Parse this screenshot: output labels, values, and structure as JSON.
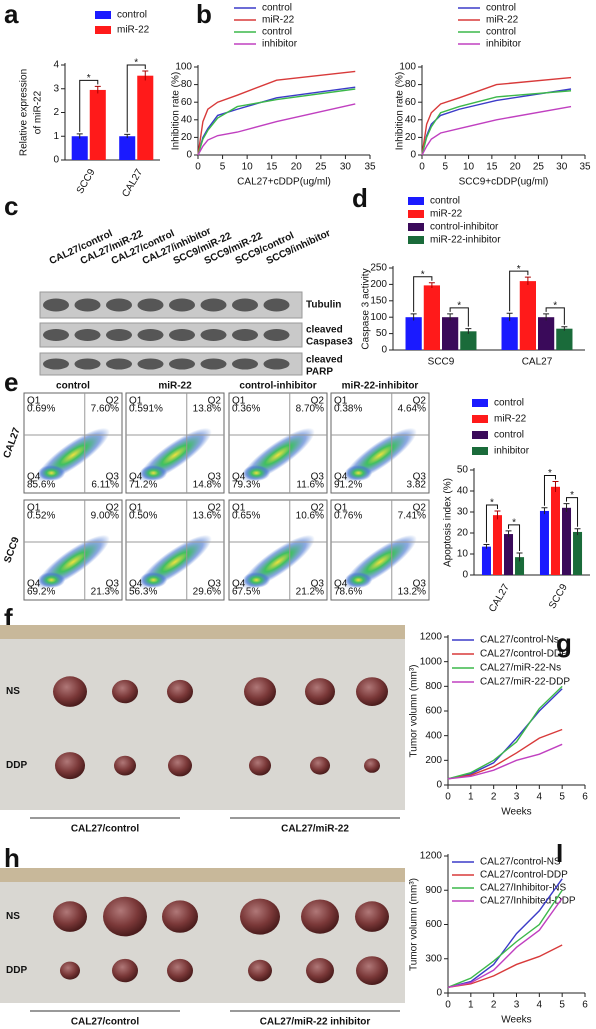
{
  "panels": [
    "a",
    "b",
    "c",
    "d",
    "e",
    "f",
    "g",
    "h",
    "I"
  ],
  "chart_data": [
    {
      "type": "bar",
      "ylabel": [
        "Relative expression",
        "of miR-22"
      ],
      "categories": [
        "SCC9",
        "CAL27"
      ],
      "series": [
        {
          "name": "control",
          "color": "#1a1aff",
          "values": [
            1.0,
            1.0
          ],
          "errors": [
            0.1,
            0.08
          ]
        },
        {
          "name": "miR-22",
          "color": "#ff1a1a",
          "values": [
            2.95,
            3.55
          ],
          "errors": [
            0.15,
            0.2
          ]
        }
      ],
      "annotations": [
        "*",
        "*"
      ],
      "ylim": [
        0,
        4
      ],
      "yticks": [
        0,
        1,
        2,
        3,
        4
      ]
    },
    {
      "type": "line",
      "xlabel": "CAL27+cDDP(ug/ml)",
      "ylabel": [
        "Inhibition rate (%)"
      ],
      "x": [
        0,
        1,
        2,
        4,
        8,
        16,
        32
      ],
      "series": [
        {
          "name": "control",
          "color": "#3b3bc8",
          "values": [
            0,
            20,
            30,
            45,
            52,
            65,
            77
          ]
        },
        {
          "name": "miR-22",
          "color": "#d83a3a",
          "values": [
            0,
            38,
            52,
            60,
            68,
            85,
            95
          ]
        },
        {
          "name": "control",
          "color": "#3cb84a",
          "values": [
            0,
            18,
            28,
            42,
            55,
            63,
            75
          ]
        },
        {
          "name": "inhibitor",
          "color": "#c040c0",
          "values": [
            0,
            10,
            17,
            22,
            26,
            38,
            58
          ]
        }
      ],
      "xlim": [
        0,
        35
      ],
      "xticks": [
        0,
        5,
        10,
        15,
        20,
        25,
        30,
        35
      ],
      "ylim": [
        0,
        100
      ],
      "yticks": [
        0,
        20,
        40,
        60,
        80,
        100
      ]
    },
    {
      "type": "line",
      "xlabel": "SCC9+cDDP(ug/ml)",
      "ylabel": [
        "Inhibition rate (%)"
      ],
      "x": [
        0,
        1,
        2,
        4,
        8,
        16,
        32
      ],
      "series": [
        {
          "name": "control",
          "color": "#3b3bc8",
          "values": [
            0,
            22,
            35,
            45,
            52,
            62,
            75
          ]
        },
        {
          "name": "miR-22",
          "color": "#d83a3a",
          "values": [
            0,
            35,
            48,
            58,
            65,
            80,
            88
          ]
        },
        {
          "name": "control",
          "color": "#3cb84a",
          "values": [
            0,
            20,
            32,
            48,
            55,
            66,
            73
          ]
        },
        {
          "name": "inhibitor",
          "color": "#c040c0",
          "values": [
            0,
            10,
            18,
            25,
            30,
            40,
            55
          ]
        }
      ],
      "xlim": [
        0,
        35
      ],
      "xticks": [
        0,
        5,
        10,
        15,
        20,
        25,
        30,
        35
      ],
      "ylim": [
        0,
        100
      ],
      "yticks": [
        0,
        20,
        40,
        60,
        80,
        100
      ]
    },
    {
      "type": "bar",
      "ylabel": [
        "Caspase 3 activity"
      ],
      "categories": [
        "SCC9",
        "CAL27"
      ],
      "series": [
        {
          "name": "control",
          "color": "#1a1aff",
          "values": [
            100,
            100
          ],
          "errors": [
            10,
            12
          ]
        },
        {
          "name": "miR-22",
          "color": "#ff1a1a",
          "values": [
            197,
            210
          ],
          "errors": [
            8,
            12
          ]
        },
        {
          "name": "control-inhibitor",
          "color": "#3a0a5a",
          "values": [
            100,
            100
          ],
          "errors": [
            10,
            10
          ]
        },
        {
          "name": "miR-22-inhibitor",
          "color": "#1a6b3a",
          "values": [
            57,
            65
          ],
          "errors": [
            8,
            6
          ]
        }
      ],
      "annotations": [
        "*",
        "*",
        "*",
        "*"
      ],
      "ylim": [
        0,
        250
      ],
      "yticks": [
        0,
        50,
        100,
        150,
        200,
        250
      ]
    },
    {
      "type": "bar",
      "ylabel": [
        "Apoptosis index (%)"
      ],
      "categories": [
        "CAL27",
        "SCC9"
      ],
      "series": [
        {
          "name": "control",
          "color": "#1a1aff",
          "values": [
            13.5,
            30.5
          ],
          "errors": [
            1,
            1.5
          ]
        },
        {
          "name": "miR-22",
          "color": "#ff1a1a",
          "values": [
            28.5,
            42
          ],
          "errors": [
            2,
            2.5
          ]
        },
        {
          "name": "control",
          "color": "#3a0a5a",
          "values": [
            19.5,
            32
          ],
          "errors": [
            1.5,
            2
          ]
        },
        {
          "name": "inhibitor",
          "color": "#1a6b3a",
          "values": [
            8.5,
            20.5
          ],
          "errors": [
            2,
            1.5
          ]
        }
      ],
      "annotations": [
        "*",
        "*",
        "*",
        "*"
      ],
      "ylim": [
        0,
        50
      ],
      "yticks": [
        0,
        10,
        20,
        30,
        40,
        50
      ]
    },
    {
      "type": "line",
      "xlabel": "Weeks",
      "ylabel": [
        "Tumor volumn (mm³)"
      ],
      "x": [
        0,
        1,
        2,
        3,
        4,
        5
      ],
      "series": [
        {
          "name": "CAL27/control-Ns",
          "color": "#3b3bc8",
          "values": [
            50,
            90,
            180,
            380,
            600,
            780
          ]
        },
        {
          "name": "CAL27/control-DDP",
          "color": "#d83a3a",
          "values": [
            50,
            80,
            150,
            260,
            380,
            450
          ]
        },
        {
          "name": "CAL27/miR-22-Ns",
          "color": "#3cb84a",
          "values": [
            50,
            100,
            200,
            350,
            620,
            800
          ]
        },
        {
          "name": "CAL27/miR-22-DDP",
          "color": "#c040c0",
          "values": [
            50,
            70,
            120,
            200,
            250,
            330
          ]
        }
      ],
      "xlim": [
        0,
        6
      ],
      "xticks": [
        0,
        1,
        2,
        3,
        4,
        5,
        6
      ],
      "ylim": [
        0,
        1200
      ],
      "yticks": [
        0,
        200,
        400,
        600,
        800,
        1000,
        1200
      ]
    },
    {
      "type": "line",
      "xlabel": "Weeks",
      "ylabel": [
        "Tumor volumn (mm³)"
      ],
      "x": [
        0,
        1,
        2,
        3,
        4,
        5
      ],
      "series": [
        {
          "name": "CAL27/control-NS",
          "color": "#3b3bc8",
          "values": [
            50,
            100,
            250,
            520,
            720,
            1000
          ]
        },
        {
          "name": "CAL27/control-DDP",
          "color": "#d83a3a",
          "values": [
            50,
            80,
            150,
            250,
            320,
            420
          ]
        },
        {
          "name": "CAL27/Inhibitor-NS",
          "color": "#3cb84a",
          "values": [
            50,
            130,
            280,
            450,
            600,
            900
          ]
        },
        {
          "name": "CAL27/Inhibited-DDP",
          "color": "#c040c0",
          "values": [
            50,
            90,
            200,
            400,
            550,
            830
          ]
        }
      ],
      "xlim": [
        0,
        6
      ],
      "xticks": [
        0,
        1,
        2,
        3,
        4,
        5,
        6
      ],
      "ylim": [
        0,
        1200
      ],
      "yticks": [
        0,
        300,
        600,
        900,
        1200
      ]
    }
  ],
  "blot": {
    "lanes": [
      "CAL27/control",
      "CAL27/miR-22",
      "CAL27/control",
      "CAL27/inhibitor",
      "SCC9/miR-22",
      "SCC9/miR-22",
      "SCC9/control",
      "SCC9/inhibitor"
    ],
    "bands": [
      [
        "Tubulin"
      ],
      [
        "cleaved",
        "Caspase3"
      ],
      [
        "cleaved",
        "PARP"
      ]
    ]
  },
  "flow": {
    "columns": [
      "control",
      "miR-22",
      "control-inhibitor",
      "miR-22-inhibitor"
    ],
    "rows": [
      "CAL27",
      "SCC9"
    ],
    "quadrants": [
      "Q1",
      "Q2",
      "Q4",
      "Q3"
    ],
    "values": [
      [
        [
          "0.69%",
          "7.60%",
          "85.6%",
          "6.11%"
        ],
        [
          "0.591%",
          "13.8%",
          "71.2%",
          "14.8%"
        ],
        [
          "0.36%",
          "8.70%",
          "79.3%",
          "11.6%"
        ],
        [
          "0.38%",
          "4.64%",
          "91.2%",
          "3.82"
        ]
      ],
      [
        [
          "0.52%",
          "9.00%",
          "69.2%",
          "21.3%"
        ],
        [
          "0.50%",
          "13.6%",
          "56.3%",
          "29.6%"
        ],
        [
          "0.65%",
          "10.6%",
          "67.5%",
          "21.2%"
        ],
        [
          "0.76%",
          "7.41%",
          "78.6%",
          "13.2%"
        ]
      ]
    ]
  },
  "tumor_f": {
    "rows": [
      "NS",
      "DDP"
    ],
    "groups": [
      "CAL27/control",
      "CAL27/miR-22"
    ]
  },
  "tumor_h": {
    "rows": [
      "NS",
      "DDP"
    ],
    "groups": [
      "CAL27/control",
      "CAL27/miR-22 inhibitor"
    ]
  }
}
